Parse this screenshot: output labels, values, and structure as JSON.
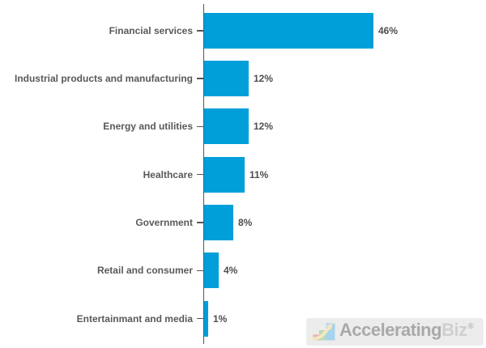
{
  "chart_data": {
    "type": "bar",
    "orientation": "horizontal",
    "title": "",
    "xlabel": "",
    "ylabel": "",
    "categories": [
      "Financial services",
      "Industrial products and manufacturing",
      "Energy and utilities",
      "Healthcare",
      "Government",
      "Retail and consumer",
      "Entertainmant and media"
    ],
    "values": [
      46,
      12,
      12,
      11,
      8,
      4,
      1
    ],
    "value_labels": [
      "46%",
      "12%",
      "12%",
      "11%",
      "8%",
      "4%",
      "1%"
    ],
    "unit": "%",
    "xlim": [
      0,
      50
    ],
    "grid": false,
    "legend": false,
    "bar_color": "#009FDA",
    "axis_color": "#55565A",
    "label_color": "#58595B",
    "value_color": "#4D4E50"
  },
  "watermark": {
    "brand_primary": "Accelerating",
    "brand_secondary": "Biz",
    "registered_mark": "®",
    "background_color": "#ECECEC",
    "primary_text_color": "#A9A9AB",
    "secondary_text_color": "#CFCFD1",
    "registered_mark_color": "#B8B8BA",
    "logo": {
      "icon": "growth-bars-arrow-icon",
      "bar_colors": [
        "#E9B2B2",
        "#BCD9B4",
        "#A6D3EE"
      ],
      "arrow_color": "#F2E8C4"
    }
  }
}
